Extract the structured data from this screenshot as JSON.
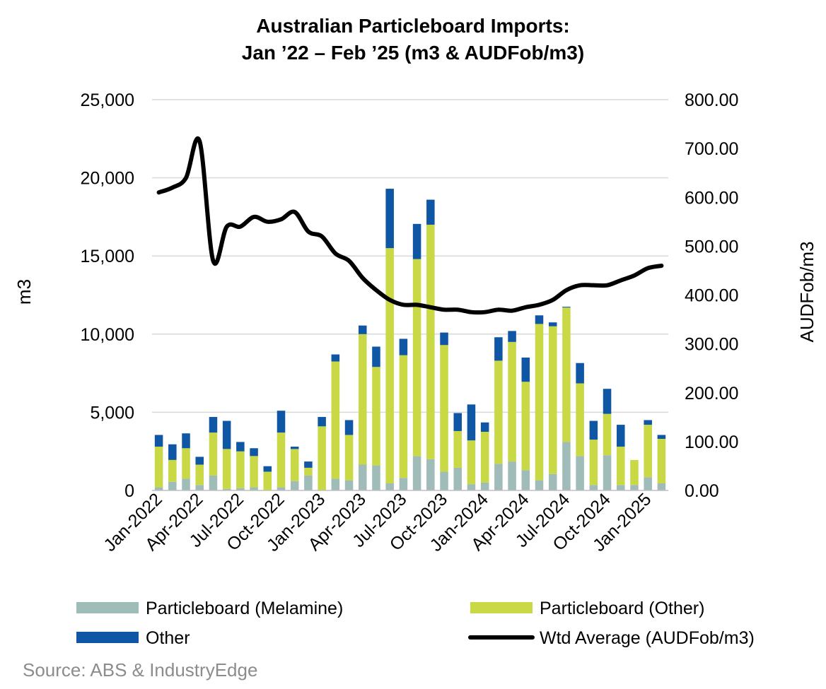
{
  "chart_data": {
    "type": "bar",
    "stacked": true,
    "title_line1": "Australian Particleboard Imports:",
    "title_line2": "Jan ’22 – Feb ’25 (m3 & AUDFob/m3)",
    "ylabel_left": "m3",
    "ylabel_right": "AUDFob/m3",
    "ylim_left": [
      0,
      25000
    ],
    "ylim_right": [
      0,
      800
    ],
    "yticks_left": [
      "0",
      "5,000",
      "10,000",
      "15,000",
      "20,000",
      "25,000"
    ],
    "yticks_right": [
      "0.00",
      "100.00",
      "200.00",
      "300.00",
      "400.00",
      "500.00",
      "600.00",
      "700.00",
      "800.00"
    ],
    "x_tick_labels": [
      "Jan-2022",
      "Apr-2022",
      "Jul-2022",
      "Oct-2022",
      "Jan-2023",
      "Apr-2023",
      "Jul-2023",
      "Oct-2023",
      "Jan-2024",
      "Apr-2024",
      "Jul-2024",
      "Oct-2024",
      "Jan-2025"
    ],
    "categories": [
      "Jan-2022",
      "Feb-2022",
      "Mar-2022",
      "Apr-2022",
      "May-2022",
      "Jun-2022",
      "Jul-2022",
      "Aug-2022",
      "Sep-2022",
      "Oct-2022",
      "Nov-2022",
      "Dec-2022",
      "Jan-2023",
      "Feb-2023",
      "Mar-2023",
      "Apr-2023",
      "May-2023",
      "Jun-2023",
      "Jul-2023",
      "Aug-2023",
      "Sep-2023",
      "Oct-2023",
      "Nov-2023",
      "Dec-2023",
      "Jan-2024",
      "Feb-2024",
      "Mar-2024",
      "Apr-2024",
      "May-2024",
      "Jun-2024",
      "Jul-2024",
      "Aug-2024",
      "Sep-2024",
      "Oct-2024",
      "Nov-2024",
      "Dec-2024",
      "Jan-2025",
      "Feb-2025"
    ],
    "series": [
      {
        "name": "Particleboard (Melamine)",
        "color": "#9fbcb8",
        "values": [
          200,
          550,
          750,
          350,
          950,
          100,
          150,
          200,
          0,
          200,
          600,
          950,
          0,
          750,
          650,
          1650,
          1600,
          450,
          800,
          2200,
          2000,
          1200,
          1450,
          400,
          500,
          1700,
          1850,
          1300,
          650,
          1050,
          3100,
          2200,
          350,
          2250,
          350,
          350,
          850,
          450
        ]
      },
      {
        "name": "Particleboard (Other)",
        "color": "#c9d845",
        "values": [
          2600,
          1400,
          1950,
          1300,
          2750,
          2550,
          2350,
          2000,
          1200,
          3500,
          2050,
          500,
          4100,
          7500,
          2900,
          8350,
          6300,
          15050,
          7850,
          12600,
          15000,
          8100,
          2350,
          2800,
          3250,
          6600,
          7650,
          5650,
          10000,
          9450,
          8600,
          4650,
          2900,
          2650,
          2450,
          1600,
          3350,
          2850
        ]
      },
      {
        "name": "Other",
        "color": "#0f57a5",
        "values": [
          750,
          1000,
          950,
          500,
          1000,
          1800,
          600,
          500,
          350,
          1400,
          150,
          400,
          600,
          450,
          950,
          550,
          1300,
          3800,
          1050,
          2250,
          1600,
          800,
          1150,
          2300,
          600,
          1500,
          700,
          1550,
          550,
          250,
          50,
          1300,
          1200,
          1600,
          1400,
          0,
          300,
          250
        ]
      },
      {
        "name": "Wtd Average (AUDFob/m3)",
        "color": "#000000",
        "axis": "right",
        "type": "line",
        "values": [
          610,
          620,
          640,
          715,
          470,
          540,
          540,
          560,
          550,
          555,
          570,
          530,
          520,
          485,
          470,
          435,
          410,
          390,
          380,
          380,
          375,
          370,
          370,
          365,
          365,
          370,
          368,
          375,
          380,
          390,
          410,
          420,
          420,
          420,
          430,
          440,
          455,
          460
        ]
      }
    ],
    "legend_position": "bottom",
    "grid": "horizontal",
    "source": "Source: ABS & IndustryEdge"
  }
}
